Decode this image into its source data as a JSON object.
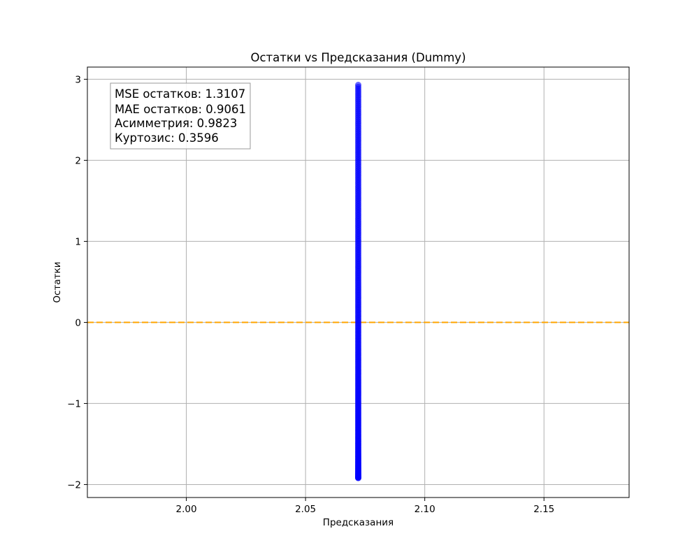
{
  "chart_data": {
    "type": "scatter",
    "title": "Остатки vs Предсказания (Dummy)",
    "xlabel": "Предсказания",
    "ylabel": "Остатки",
    "xlim": [
      1.9585,
      2.1857
    ],
    "ylim": [
      -2.16,
      3.15
    ],
    "grid": true,
    "x_ticks": [
      {
        "value": 2.0,
        "label": "2.00"
      },
      {
        "value": 2.05,
        "label": "2.05"
      },
      {
        "value": 2.1,
        "label": "2.10"
      },
      {
        "value": 2.15,
        "label": "2.15"
      }
    ],
    "y_ticks": [
      {
        "value": -2,
        "label": "−2"
      },
      {
        "value": -1,
        "label": "−1"
      },
      {
        "value": 0,
        "label": "0"
      },
      {
        "value": 1,
        "label": "1"
      },
      {
        "value": 2,
        "label": "2"
      },
      {
        "value": 3,
        "label": "3"
      }
    ],
    "series": [
      {
        "color": "#0000ff",
        "opacity": 0.6,
        "x_constant": 2.0721,
        "y_min": -1.92,
        "y_max": 2.93
      }
    ],
    "reference_line": {
      "y": 0,
      "color": "#ffa500",
      "style": "dashed"
    },
    "annotation_box": {
      "location": "top-left",
      "lines": [
        "MSE остатков: 1.3107",
        "MAE остатков: 0.9061",
        "Асимметрия: 0.9823",
        "Куртозис: 0.3596"
      ]
    }
  }
}
